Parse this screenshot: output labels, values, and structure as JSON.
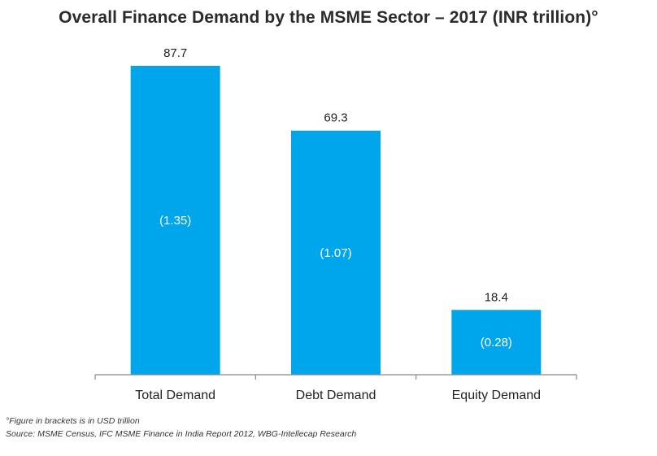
{
  "chart_data": {
    "type": "bar",
    "title": "Overall Finance Demand by the MSME Sector – 2017 (INR trillion)°",
    "categories": [
      "Total Demand",
      "Debt Demand",
      "Equity Demand"
    ],
    "values": [
      87.7,
      69.3,
      18.4
    ],
    "value_labels": [
      "87.7",
      "69.3",
      "18.4"
    ],
    "inner_labels": [
      "(1.35)",
      "(1.07)",
      "(0.28)"
    ],
    "xlabel": "",
    "ylabel": "",
    "ylim": [
      0,
      87.7
    ],
    "grid": false,
    "legend": "none",
    "bar_color": "#00a6eb",
    "inner_label_color": "#ffffff",
    "axis_color": "#888888"
  },
  "footnotes": [
    "°Figure in brackets is in USD trillion",
    "Source: MSME Census, IFC MSME Finance in India Report 2012, WBG-Intellecap Research"
  ]
}
